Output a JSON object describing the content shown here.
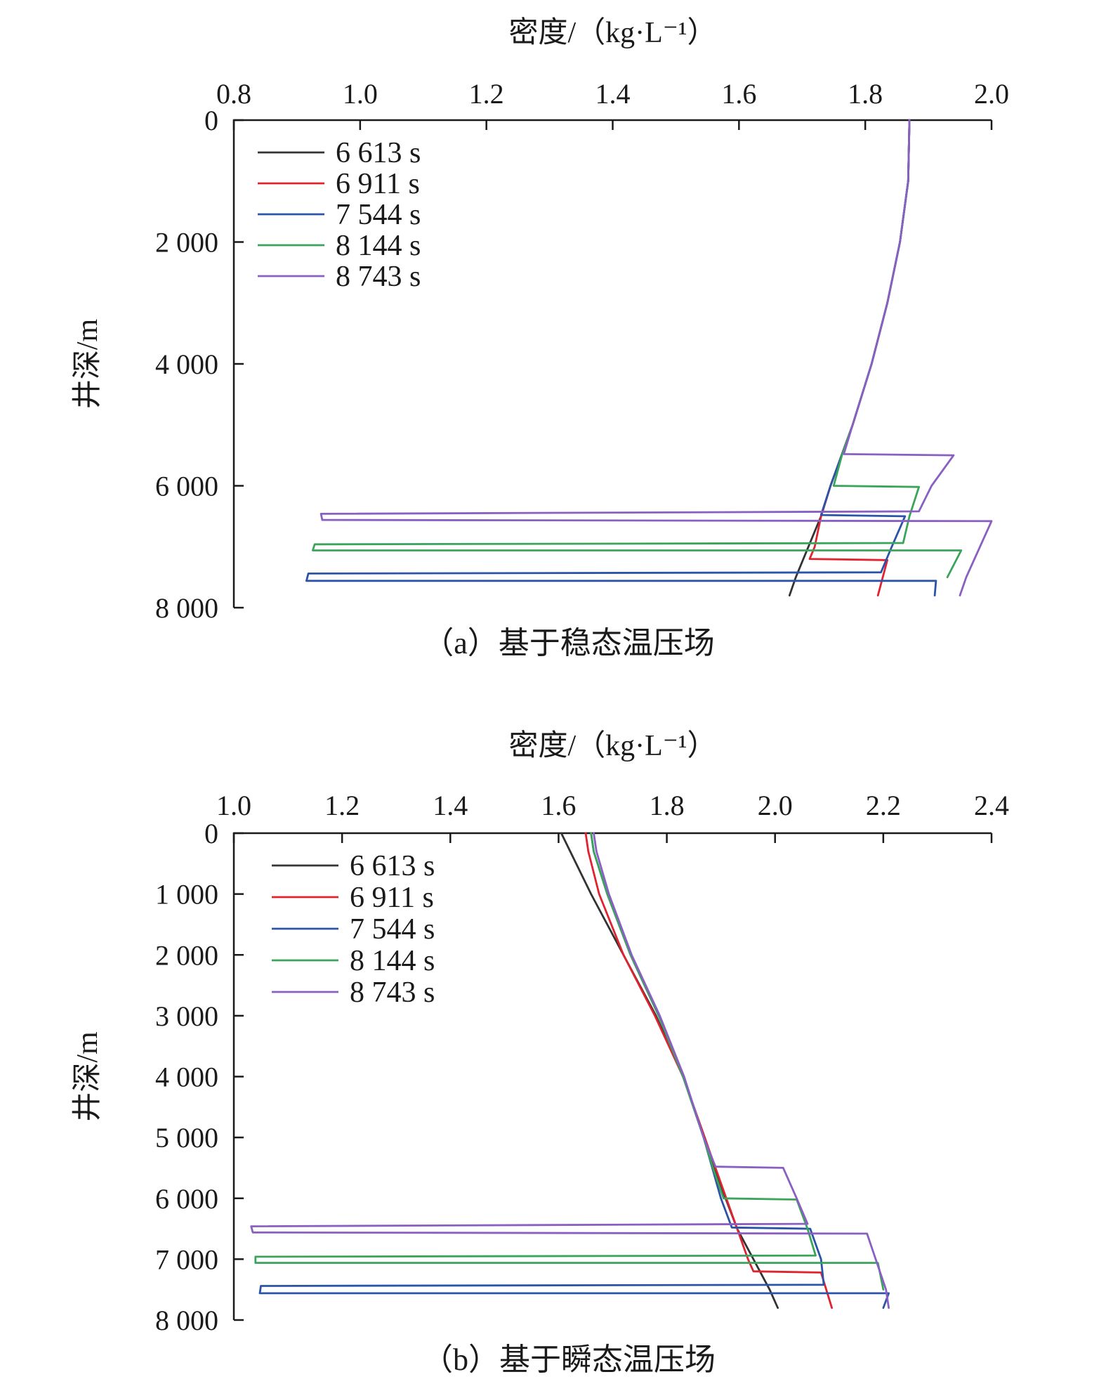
{
  "chart_data": [
    {
      "type": "line",
      "caption": "（a）基于稳态温压场",
      "xlabel": "密度/（kg·L⁻¹）",
      "ylabel": "井深/m",
      "xlim": [
        0.8,
        2.0
      ],
      "ylim": [
        0,
        8000
      ],
      "y_inverted": true,
      "x_axis_position": "top",
      "xticks": [
        0.8,
        1.0,
        1.2,
        1.4,
        1.6,
        1.8,
        2.0
      ],
      "xtick_labels": [
        "0.8",
        "1.0",
        "1.2",
        "1.4",
        "1.6",
        "1.8",
        "2.0"
      ],
      "yticks": [
        0,
        2000,
        4000,
        6000,
        8000
      ],
      "ytick_labels": [
        "0",
        "2 000",
        "4 000",
        "6 000",
        "8 000"
      ],
      "legend_position": "top-left",
      "series": [
        {
          "name": "6 613 s",
          "color": "#333333",
          "points": [
            [
              1.87,
              0
            ],
            [
              1.868,
              1000
            ],
            [
              1.855,
              2000
            ],
            [
              1.835,
              3000
            ],
            [
              1.81,
              4000
            ],
            [
              1.78,
              5000
            ],
            [
              1.745,
              6000
            ],
            [
              1.73,
              6500
            ],
            [
              1.71,
              7000
            ],
            [
              1.69,
              7500
            ],
            [
              1.68,
              7800
            ]
          ]
        },
        {
          "name": "6 911 s",
          "color": "#e0232f",
          "points": [
            [
              1.87,
              0
            ],
            [
              1.868,
              1000
            ],
            [
              1.855,
              2000
            ],
            [
              1.835,
              3000
            ],
            [
              1.81,
              4000
            ],
            [
              1.78,
              5000
            ],
            [
              1.745,
              6000
            ],
            [
              1.73,
              6500
            ],
            [
              1.72,
              7000
            ],
            [
              1.712,
              7200
            ],
            [
              1.835,
              7220
            ],
            [
              1.82,
              7800
            ]
          ]
        },
        {
          "name": "7 544 s",
          "color": "#2b54a8",
          "points": [
            [
              1.87,
              0
            ],
            [
              1.868,
              1000
            ],
            [
              1.855,
              2000
            ],
            [
              1.835,
              3000
            ],
            [
              1.81,
              4000
            ],
            [
              1.78,
              5000
            ],
            [
              1.745,
              6000
            ],
            [
              1.73,
              6480
            ],
            [
              1.863,
              6500
            ],
            [
              1.842,
              7000
            ],
            [
              1.825,
              7420
            ],
            [
              0.918,
              7440
            ],
            [
              0.915,
              7560
            ],
            [
              1.912,
              7560
            ],
            [
              1.91,
              7800
            ]
          ]
        },
        {
          "name": "8 144 s",
          "color": "#3aa45a",
          "points": [
            [
              1.87,
              0
            ],
            [
              1.868,
              1000
            ],
            [
              1.855,
              2000
            ],
            [
              1.835,
              3000
            ],
            [
              1.81,
              4000
            ],
            [
              1.78,
              5000
            ],
            [
              1.763,
              5500
            ],
            [
              1.75,
              6000
            ],
            [
              1.885,
              6020
            ],
            [
              1.87,
              6500
            ],
            [
              1.86,
              6940
            ],
            [
              0.928,
              6960
            ],
            [
              0.925,
              7060
            ],
            [
              1.952,
              7060
            ],
            [
              1.93,
              7500
            ]
          ]
        },
        {
          "name": "8 743 s",
          "color": "#8a5fc2",
          "points": [
            [
              1.87,
              0
            ],
            [
              1.868,
              1000
            ],
            [
              1.855,
              2000
            ],
            [
              1.835,
              3000
            ],
            [
              1.81,
              4000
            ],
            [
              1.78,
              5000
            ],
            [
              1.766,
              5480
            ],
            [
              1.94,
              5500
            ],
            [
              1.905,
              6000
            ],
            [
              1.885,
              6420
            ],
            [
              0.938,
              6460
            ],
            [
              0.94,
              6560
            ],
            [
              2.0,
              6580
            ],
            [
              1.96,
              7500
            ],
            [
              1.95,
              7800
            ]
          ]
        }
      ]
    },
    {
      "type": "line",
      "caption": "（b）基于瞬态温压场",
      "xlabel": "密度/（kg·L⁻¹）",
      "ylabel": "井深/m",
      "xlim": [
        1.0,
        2.4
      ],
      "ylim": [
        0,
        8000
      ],
      "y_inverted": true,
      "x_axis_position": "top",
      "xticks": [
        1.0,
        1.2,
        1.4,
        1.6,
        1.8,
        2.0,
        2.2,
        2.4
      ],
      "xtick_labels": [
        "1.0",
        "1.2",
        "1.4",
        "1.6",
        "1.8",
        "2.0",
        "2.2",
        "2.4"
      ],
      "yticks": [
        0,
        1000,
        2000,
        3000,
        4000,
        5000,
        6000,
        7000,
        8000
      ],
      "ytick_labels": [
        "0",
        "1 000",
        "2 000",
        "3 000",
        "4 000",
        "5 000",
        "6 000",
        "7 000",
        "8 000"
      ],
      "legend_position": "top-left",
      "series": [
        {
          "name": "6 613 s",
          "color": "#333333",
          "points": [
            [
              1.605,
              0
            ],
            [
              1.66,
              1000
            ],
            [
              1.72,
              2000
            ],
            [
              1.78,
              3000
            ],
            [
              1.83,
              4000
            ],
            [
              1.87,
              5000
            ],
            [
              1.9,
              5800
            ],
            [
              1.93,
              6500
            ],
            [
              1.96,
              7000
            ],
            [
              1.99,
              7500
            ],
            [
              2.005,
              7800
            ]
          ]
        },
        {
          "name": "6 911 s",
          "color": "#e0232f",
          "points": [
            [
              1.65,
              0
            ],
            [
              1.655,
              300
            ],
            [
              1.675,
              1000
            ],
            [
              1.72,
              2000
            ],
            [
              1.778,
              3000
            ],
            [
              1.83,
              4000
            ],
            [
              1.87,
              5000
            ],
            [
              1.91,
              6000
            ],
            [
              1.93,
              6500
            ],
            [
              1.95,
              7000
            ],
            [
              1.96,
              7200
            ],
            [
              2.085,
              7220
            ],
            [
              2.105,
              7800
            ]
          ]
        },
        {
          "name": "7 544 s",
          "color": "#2b54a8",
          "points": [
            [
              1.66,
              0
            ],
            [
              1.665,
              300
            ],
            [
              1.69,
              1000
            ],
            [
              1.733,
              2000
            ],
            [
              1.785,
              3000
            ],
            [
              1.83,
              4000
            ],
            [
              1.868,
              5000
            ],
            [
              1.9,
              6000
            ],
            [
              1.92,
              6480
            ],
            [
              2.065,
              6500
            ],
            [
              2.085,
              7000
            ],
            [
              2.09,
              7420
            ],
            [
              1.05,
              7440
            ],
            [
              1.048,
              7560
            ],
            [
              2.21,
              7560
            ],
            [
              2.2,
              7800
            ]
          ]
        },
        {
          "name": "8 144 s",
          "color": "#3aa45a",
          "points": [
            [
              1.66,
              0
            ],
            [
              1.665,
              300
            ],
            [
              1.69,
              1000
            ],
            [
              1.733,
              2000
            ],
            [
              1.785,
              3000
            ],
            [
              1.83,
              4000
            ],
            [
              1.868,
              5000
            ],
            [
              1.885,
              5500
            ],
            [
              1.905,
              6000
            ],
            [
              2.04,
              6020
            ],
            [
              2.06,
              6500
            ],
            [
              2.075,
              6940
            ],
            [
              1.04,
              6960
            ],
            [
              1.04,
              7060
            ],
            [
              2.19,
              7060
            ],
            [
              2.2,
              7500
            ]
          ]
        },
        {
          "name": "8 743 s",
          "color": "#8a5fc2",
          "points": [
            [
              1.665,
              0
            ],
            [
              1.67,
              300
            ],
            [
              1.693,
              1000
            ],
            [
              1.735,
              2000
            ],
            [
              1.787,
              3000
            ],
            [
              1.832,
              4000
            ],
            [
              1.868,
              5000
            ],
            [
              1.89,
              5480
            ],
            [
              2.015,
              5500
            ],
            [
              2.04,
              6000
            ],
            [
              2.06,
              6420
            ],
            [
              1.032,
              6460
            ],
            [
              1.035,
              6560
            ],
            [
              2.17,
              6580
            ],
            [
              2.205,
              7500
            ],
            [
              2.21,
              7800
            ]
          ]
        }
      ]
    }
  ]
}
